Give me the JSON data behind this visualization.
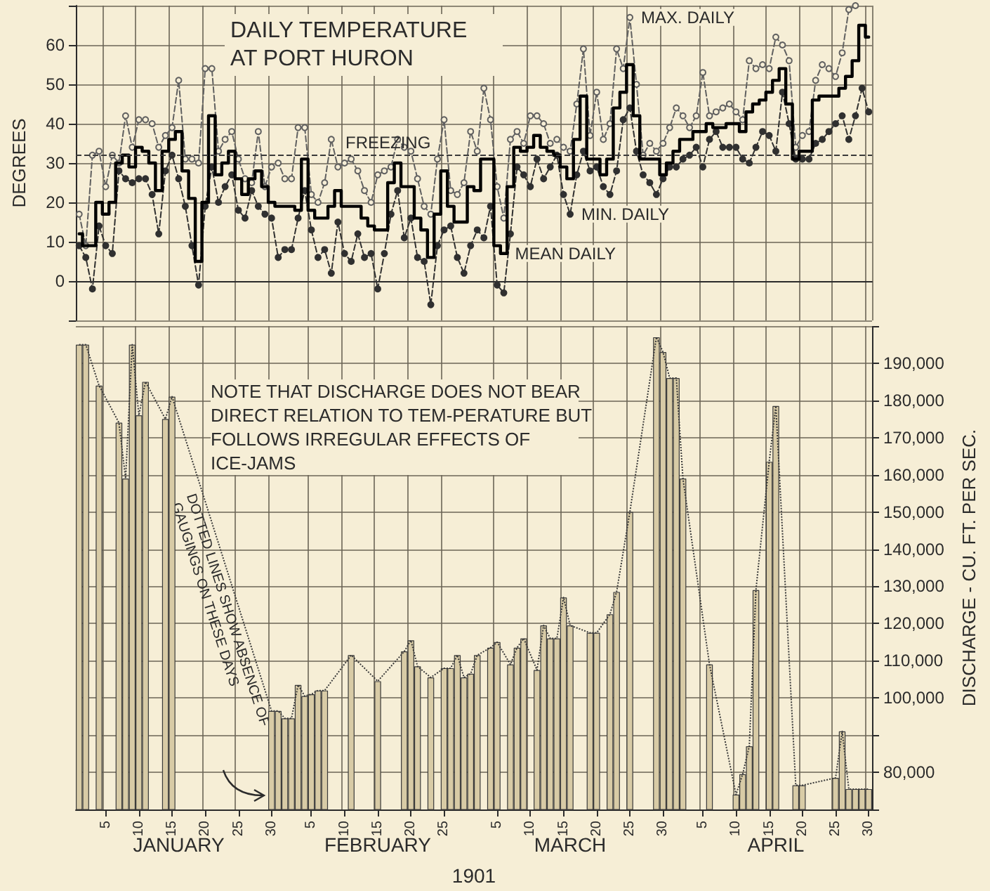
{
  "chart_data": [
    {
      "type": "line",
      "title": "DAILY TEMPERATURE AT PORT HURON",
      "ylabel": "DEGREES",
      "categories": [
        null,
        null,
        null,
        null,
        "5",
        null,
        null,
        null,
        null,
        "10",
        null,
        null,
        null,
        null,
        "15",
        null,
        null,
        null,
        null,
        "20",
        null,
        null,
        null,
        null,
        "25",
        null,
        null,
        null,
        null,
        "30",
        null,
        null,
        null,
        null,
        null,
        "5",
        null,
        null,
        null,
        null,
        "10",
        null,
        null,
        null,
        null,
        "15",
        null,
        null,
        null,
        null,
        "20",
        null,
        null,
        null,
        null,
        "25",
        null,
        null,
        null,
        null,
        null,
        null,
        null,
        "5",
        null,
        null,
        null,
        null,
        "10",
        null,
        null,
        null,
        null,
        "15",
        null,
        null,
        null,
        null,
        "20",
        null,
        null,
        null,
        null,
        "25",
        null,
        null,
        null,
        null,
        "30",
        null,
        null,
        null,
        null,
        null,
        "5",
        null,
        null,
        null,
        null,
        "10",
        null,
        null,
        null,
        null,
        "15",
        null,
        null,
        null,
        null,
        "20",
        null,
        null,
        null,
        null,
        "25",
        null,
        null,
        null,
        null,
        "30"
      ],
      "ylim": [
        -10,
        70
      ],
      "yticks": [
        0,
        10,
        20,
        30,
        40,
        50,
        60
      ],
      "grid": true,
      "tick_labels": "y",
      "ref_lines": [
        {
          "axis": "y",
          "value": 32,
          "label": "FREEZING",
          "line_style": "dashed",
          "color": "#3a3a3a"
        }
      ],
      "series": [
        {
          "name": "MAX. DAILY",
          "color": "#606060",
          "marker": "circle",
          "line_style": "dashed",
          "values": [
            17,
            9,
            32,
            33,
            24,
            32,
            30,
            42,
            34,
            41,
            41,
            40,
            34,
            37,
            39,
            51,
            31,
            31,
            30,
            54,
            54,
            33,
            36,
            38,
            31,
            26,
            25,
            38,
            24,
            29,
            30,
            26,
            26,
            39,
            39,
            22,
            20,
            25,
            36,
            29,
            30,
            31,
            28,
            23,
            20,
            27,
            28,
            29,
            36,
            34,
            33,
            26,
            19,
            17,
            31,
            41,
            23,
            22,
            25,
            38,
            33,
            49,
            41,
            24,
            16,
            36,
            38,
            35,
            42,
            42,
            40,
            35,
            36,
            34,
            33,
            45,
            59,
            37,
            48,
            36,
            40,
            59,
            54,
            67,
            50,
            32,
            35,
            33,
            35,
            39,
            44,
            42,
            39,
            42,
            53,
            42,
            43,
            44,
            45,
            43,
            41,
            56,
            54,
            55,
            54,
            62,
            60,
            56,
            34,
            37,
            38,
            51,
            55,
            54,
            52,
            58,
            69,
            70,
            null,
            null
          ]
        },
        {
          "name": "MIN. DAILY",
          "color": "#303030",
          "marker": "circle",
          "line_style": "dashed",
          "values": [
            9,
            6,
            -2,
            14,
            9,
            7,
            28,
            26,
            25,
            26,
            26,
            22,
            12,
            28,
            32,
            26,
            19,
            9,
            -1,
            19,
            29,
            20,
            24,
            27,
            18,
            16,
            23,
            19,
            17,
            16,
            6,
            8,
            8,
            16,
            23,
            13,
            6,
            8,
            2,
            15,
            7,
            5,
            12,
            6,
            7,
            -2,
            7,
            17,
            23,
            11,
            16,
            6,
            5,
            -6,
            9,
            13,
            14,
            6,
            2,
            9,
            13,
            11,
            19,
            -1,
            -3,
            12,
            29,
            27,
            24,
            31,
            26,
            29,
            32,
            22,
            17,
            27,
            33,
            28,
            29,
            24,
            22,
            28,
            41,
            44,
            33,
            27,
            25,
            22,
            26,
            29,
            29,
            31,
            32,
            34,
            29,
            36,
            38,
            34,
            34,
            34,
            31,
            30,
            34,
            38,
            37,
            33,
            48,
            40,
            31,
            31,
            31,
            35,
            36,
            38,
            40,
            42,
            36,
            42,
            49,
            43
          ]
        },
        {
          "name": "MEAN DAILY",
          "type": "step",
          "color": "#000000",
          "marker": "none",
          "line_style": "solid",
          "values": [
            12,
            9,
            9,
            20,
            17,
            20,
            30,
            32,
            29,
            34,
            33,
            30,
            23,
            33,
            36,
            38,
            28,
            21,
            5,
            20,
            42,
            27,
            30,
            33,
            26,
            22,
            26,
            28,
            24,
            20,
            19,
            19,
            19,
            18,
            31,
            18,
            16,
            16,
            19,
            23,
            19,
            19,
            19,
            16,
            14,
            13,
            13,
            25,
            30,
            24,
            24,
            16,
            13,
            6,
            17,
            28,
            19,
            15,
            15,
            24,
            23,
            31,
            31,
            9,
            7,
            24,
            34,
            33,
            34,
            37,
            34,
            33,
            32,
            29,
            26,
            36,
            47,
            31,
            31,
            27,
            31,
            44,
            48,
            55,
            42,
            31,
            31,
            31,
            27,
            30,
            33,
            36,
            36,
            38,
            38,
            40,
            39,
            39,
            40,
            40,
            38,
            43,
            45,
            46,
            48,
            51,
            54,
            45,
            31,
            33,
            33,
            46,
            47,
            47,
            47,
            49,
            52,
            56,
            65,
            62
          ]
        }
      ]
    },
    {
      "type": "bar",
      "xlabel": "1901",
      "ylabel": "DISCHARGE - CU. FT. PER SEC.",
      "categories": [
        null,
        null,
        null,
        null,
        "5",
        null,
        null,
        null,
        null,
        "10",
        null,
        null,
        null,
        null,
        "15",
        null,
        null,
        null,
        null,
        "20",
        null,
        null,
        null,
        null,
        "25",
        null,
        null,
        null,
        null,
        "30",
        null,
        null,
        null,
        null,
        null,
        "5",
        null,
        null,
        null,
        null,
        "10",
        null,
        null,
        null,
        null,
        "15",
        null,
        null,
        null,
        null,
        "20",
        null,
        null,
        null,
        null,
        "25",
        null,
        null,
        null,
        null,
        null,
        null,
        null,
        "5",
        null,
        null,
        null,
        null,
        "10",
        null,
        null,
        null,
        null,
        "15",
        null,
        null,
        null,
        null,
        "20",
        null,
        null,
        null,
        null,
        "25",
        null,
        null,
        null,
        null,
        "30",
        null,
        null,
        null,
        null,
        null,
        "5",
        null,
        null,
        null,
        null,
        "10",
        null,
        null,
        null,
        null,
        "15",
        null,
        null,
        null,
        null,
        "20",
        null,
        null,
        null,
        null,
        "25",
        null,
        null,
        null,
        null,
        "30"
      ],
      "ylim": [
        70000,
        200000
      ],
      "yticks": [
        {
          "value": 80000,
          "label": "80,000"
        },
        {
          "value": 90000,
          "label": null
        },
        {
          "value": 100000,
          "label": "100,000"
        },
        {
          "value": 110000,
          "label": "110,000"
        },
        {
          "value": 120000,
          "label": "120,000"
        },
        {
          "value": 130000,
          "label": "130,000"
        },
        {
          "value": 140000,
          "label": "140,000"
        },
        {
          "value": 150000,
          "label": "150,000"
        },
        {
          "value": 160000,
          "label": "160,000"
        },
        {
          "value": 170000,
          "label": "170,000"
        },
        {
          "value": 180000,
          "label": "180,000"
        },
        {
          "value": 190000,
          "label": "190,000"
        }
      ],
      "grid": true,
      "line_style": "dotted",
      "annotations": [
        "NOTE THAT DISCHARGE DOES NOT BEAR DIRECT RELATION TO TEM-PERATURE BUT FOLLOWS IRREGULAR EFFECTS OF ICE-JAMS",
        "DOTTED LINES SHOW ABSENCE OF GAUGINGS ON THESE DAYS",
        "JANUARY",
        "FEBRUARY",
        "MARCH",
        "APRIL"
      ],
      "series": [
        {
          "color": "#d8cba6",
          "values": [
            195000,
            195000,
            null,
            184000,
            null,
            null,
            174000,
            159000,
            195000,
            176000,
            185000,
            null,
            null,
            175000,
            181000,
            null,
            null,
            null,
            null,
            null,
            null,
            null,
            null,
            null,
            null,
            null,
            null,
            null,
            null,
            96500,
            96500,
            94500,
            94500,
            103500,
            100500,
            101000,
            102000,
            102000,
            null,
            null,
            null,
            111500,
            null,
            null,
            null,
            104500,
            null,
            null,
            null,
            112500,
            115500,
            108500,
            null,
            105500,
            null,
            108000,
            108000,
            111500,
            105500,
            106500,
            111500,
            null,
            113500,
            115000,
            null,
            109000,
            113500,
            116000,
            null,
            107500,
            119500,
            116000,
            116000,
            127000,
            119500,
            null,
            null,
            117500,
            117500,
            null,
            122500,
            128500,
            null,
            150000,
            null,
            null,
            null,
            197000,
            193000,
            186000,
            186000,
            159000,
            null,
            null,
            null,
            109000,
            null,
            null,
            null,
            74000,
            79500,
            87000,
            129000,
            null,
            163500,
            178500,
            null,
            null,
            76500,
            76500,
            null,
            null,
            null,
            null,
            78500,
            91000,
            75500,
            75500,
            75500,
            75500
          ]
        }
      ]
    }
  ]
}
